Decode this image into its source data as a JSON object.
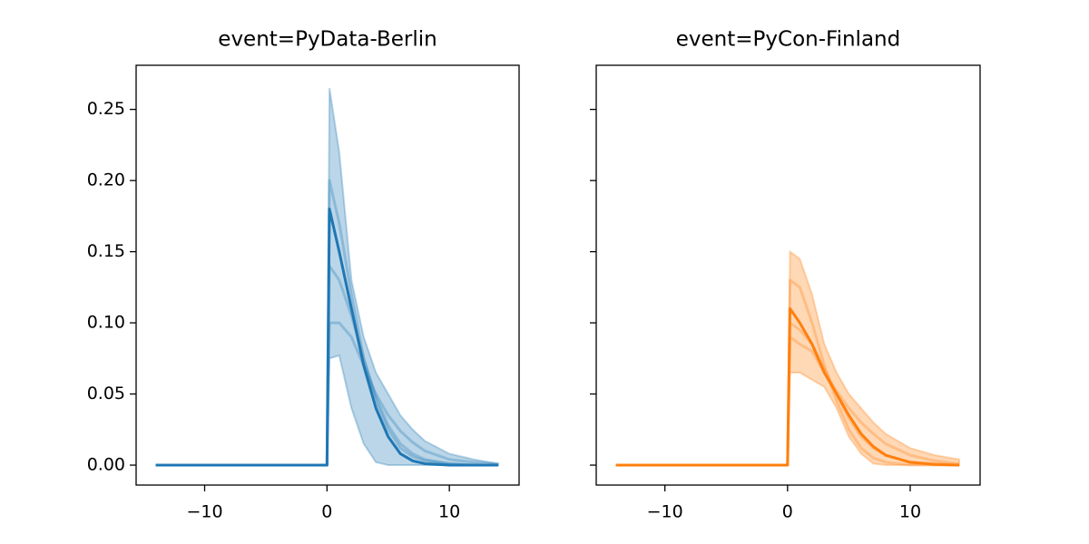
{
  "chart_data": [
    {
      "type": "line",
      "title": "event=PyData-Berlin",
      "x": [
        -14,
        0,
        0.2,
        1,
        2,
        3,
        4,
        5,
        6,
        7,
        8,
        10,
        12,
        14
      ],
      "band": {
        "color": "#1f77b4",
        "upper": [
          0,
          0,
          0.265,
          0.22,
          0.13,
          0.09,
          0.065,
          0.05,
          0.035,
          0.025,
          0.017,
          0.008,
          0.004,
          0.001
        ],
        "lower": [
          0,
          0,
          0.075,
          0.077,
          0.04,
          0.015,
          0.002,
          0,
          0,
          0,
          0,
          0,
          0,
          0
        ]
      },
      "samples": [
        {
          "color": "#1f77b4",
          "values": [
            0,
            0,
            0.2,
            0.17,
            0.12,
            0.075,
            0.045,
            0.025,
            0.012,
            0.006,
            0.003,
            0.001,
            0,
            0
          ]
        },
        {
          "color": "#1f77b4",
          "values": [
            0,
            0,
            0.1,
            0.1,
            0.09,
            0.07,
            0.05,
            0.035,
            0.024,
            0.016,
            0.01,
            0.004,
            0.002,
            0.001
          ]
        },
        {
          "color": "#1f77b4",
          "values": [
            0,
            0,
            0.14,
            0.13,
            0.105,
            0.075,
            0.048,
            0.028,
            0.015,
            0.008,
            0.004,
            0.001,
            0,
            0
          ]
        }
      ],
      "series": [
        {
          "color": "#1f77b4",
          "values": [
            0,
            0,
            0.18,
            0.15,
            0.11,
            0.07,
            0.04,
            0.02,
            0.008,
            0.003,
            0.001,
            0,
            0,
            0
          ]
        }
      ],
      "xlim": [
        -15.6,
        15.7
      ],
      "ylim": [
        -0.014,
        0.281
      ],
      "xticks": [
        {
          "value": -10,
          "label": "−10"
        },
        0,
        10
      ],
      "yticks": [
        {
          "value": 0,
          "label": "0.00"
        },
        {
          "value": 0.05,
          "label": "0.05"
        },
        {
          "value": 0.1,
          "label": "0.10"
        },
        {
          "value": 0.15,
          "label": "0.15"
        },
        {
          "value": 0.2,
          "label": "0.20"
        },
        {
          "value": 0.25,
          "label": "0.25"
        }
      ],
      "ytick_labels": true
    },
    {
      "type": "line",
      "title": "event=PyCon-Finland",
      "x": [
        -14,
        0,
        0.2,
        1,
        2,
        3,
        4,
        5,
        6,
        7,
        8,
        10,
        12,
        14
      ],
      "band": {
        "color": "#ff7f0e",
        "upper": [
          0,
          0,
          0.15,
          0.145,
          0.12,
          0.085,
          0.065,
          0.05,
          0.04,
          0.03,
          0.022,
          0.012,
          0.007,
          0.004
        ],
        "lower": [
          0,
          0,
          0.065,
          0.065,
          0.06,
          0.055,
          0.04,
          0.02,
          0.008,
          0.001,
          0,
          0,
          0,
          0
        ]
      },
      "samples": [
        {
          "color": "#ff7f0e",
          "values": [
            0,
            0,
            0.13,
            0.125,
            0.1,
            0.07,
            0.045,
            0.025,
            0.012,
            0.005,
            0.002,
            0,
            0,
            0
          ]
        },
        {
          "color": "#ff7f0e",
          "values": [
            0,
            0,
            0.09,
            0.085,
            0.08,
            0.065,
            0.052,
            0.04,
            0.03,
            0.022,
            0.015,
            0.007,
            0.003,
            0.001
          ]
        },
        {
          "color": "#ff7f0e",
          "values": [
            0,
            0,
            0.1,
            0.095,
            0.085,
            0.068,
            0.05,
            0.033,
            0.02,
            0.012,
            0.007,
            0.002,
            0.001,
            0
          ]
        }
      ],
      "series": [
        {
          "color": "#ff7f0e",
          "values": [
            0,
            0,
            0.11,
            0.1,
            0.085,
            0.065,
            0.05,
            0.035,
            0.022,
            0.013,
            0.007,
            0.002,
            0.0005,
            0
          ]
        }
      ],
      "xlim": [
        -15.6,
        15.7
      ],
      "ylim": [
        -0.014,
        0.281
      ],
      "xticks": [
        {
          "value": -10,
          "label": "−10"
        },
        0,
        10
      ],
      "yticks": [
        0,
        0.05,
        0.1,
        0.15,
        0.2,
        0.25
      ],
      "ytick_labels": false
    }
  ]
}
